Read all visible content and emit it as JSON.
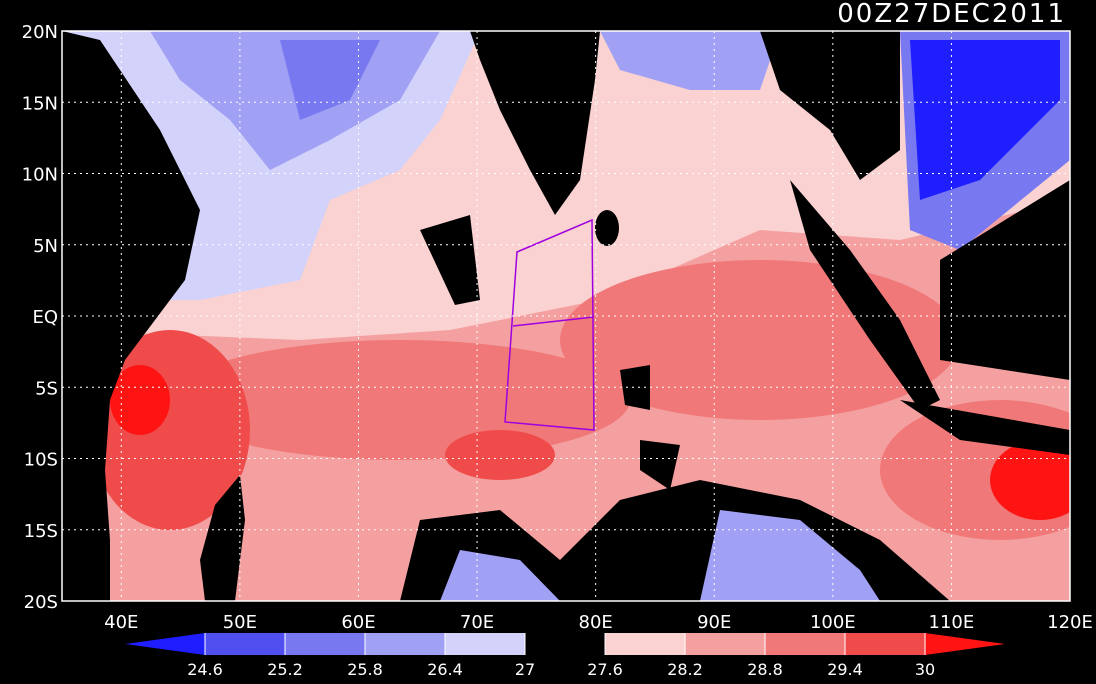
{
  "map": {
    "title": "00Z27DEC2011",
    "xlim": [
      35,
      120
    ],
    "ylim": [
      -20,
      20
    ],
    "xticks": [
      {
        "value": 40,
        "label": "40E"
      },
      {
        "value": 50,
        "label": "50E"
      },
      {
        "value": 60,
        "label": "60E"
      },
      {
        "value": 70,
        "label": "70E"
      },
      {
        "value": 80,
        "label": "80E"
      },
      {
        "value": 90,
        "label": "90E"
      },
      {
        "value": 100,
        "label": "100E"
      },
      {
        "value": 110,
        "label": "110E"
      },
      {
        "value": 120,
        "label": "120E"
      }
    ],
    "yticks": [
      {
        "value": 20,
        "label": "20N"
      },
      {
        "value": 15,
        "label": "15N"
      },
      {
        "value": 10,
        "label": "10N"
      },
      {
        "value": 5,
        "label": "5N"
      },
      {
        "value": 0,
        "label": "EQ"
      },
      {
        "value": -5,
        "label": "5S"
      },
      {
        "value": -10,
        "label": "10S"
      },
      {
        "value": -15,
        "label": "15S"
      },
      {
        "value": -20,
        "label": "20S"
      }
    ],
    "grid": true,
    "colorbar": {
      "levels": [
        24.6,
        25.2,
        25.8,
        26.4,
        27,
        27.6,
        28.2,
        28.8,
        29.4,
        30
      ],
      "colors": [
        "#1e1eff",
        "#5050f0",
        "#7878f0",
        "#a0a0f5",
        "#d2d2fa",
        "#000000",
        "#fad2d2",
        "#f5a0a0",
        "#f07878",
        "#f04b4b",
        "#ff1414"
      ]
    }
  }
}
